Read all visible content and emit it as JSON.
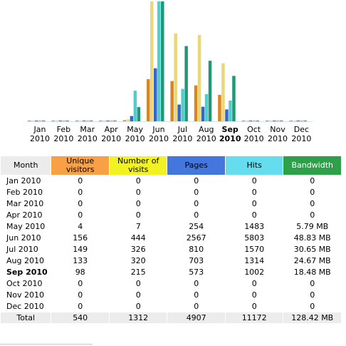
{
  "chart_data": {
    "type": "bar",
    "categories": [
      "Jan 2010",
      "Feb 2010",
      "Mar 2010",
      "Apr 2010",
      "May 2010",
      "Jun 2010",
      "Jul 2010",
      "Aug 2010",
      "Sep 2010",
      "Oct 2010",
      "Nov 2010",
      "Dec 2010"
    ],
    "series": [
      {
        "name": "Unique visitors",
        "values": [
          0,
          0,
          0,
          0,
          4,
          156,
          149,
          133,
          98,
          0,
          0,
          0
        ]
      },
      {
        "name": "Number of visits",
        "values": [
          0,
          0,
          0,
          0,
          7,
          444,
          326,
          320,
          215,
          0,
          0,
          0
        ]
      },
      {
        "name": "Pages",
        "values": [
          0,
          0,
          0,
          0,
          254,
          2567,
          810,
          703,
          573,
          0,
          0,
          0
        ]
      },
      {
        "name": "Hits",
        "values": [
          0,
          0,
          0,
          0,
          1483,
          5803,
          1570,
          1314,
          1002,
          0,
          0,
          0
        ]
      },
      {
        "name": "Bandwidth",
        "values": [
          0,
          0,
          0,
          0,
          5.79,
          48.83,
          30.65,
          24.67,
          18.48,
          0,
          0,
          0
        ]
      }
    ],
    "colors": [
      "#d9861f",
      "#e8d878",
      "#3366cc",
      "#55cccc",
      "#1f9977"
    ],
    "highlight": "Sep 2010"
  },
  "months": [
    {
      "mon": "Jan",
      "year": "2010"
    },
    {
      "mon": "Feb",
      "year": "2010"
    },
    {
      "mon": "Mar",
      "year": "2010"
    },
    {
      "mon": "Apr",
      "year": "2010"
    },
    {
      "mon": "May",
      "year": "2010"
    },
    {
      "mon": "Jun",
      "year": "2010"
    },
    {
      "mon": "Jul",
      "year": "2010"
    },
    {
      "mon": "Aug",
      "year": "2010"
    },
    {
      "mon": "Sep",
      "year": "2010"
    },
    {
      "mon": "Oct",
      "year": "2010"
    },
    {
      "mon": "Nov",
      "year": "2010"
    },
    {
      "mon": "Dec",
      "year": "2010"
    }
  ],
  "table": {
    "headers": {
      "month": "Month",
      "unique": "Unique visitors",
      "visits": "Number of visits",
      "pages": "Pages",
      "hits": "Hits",
      "bandwidth": "Bandwidth"
    },
    "rows": [
      {
        "month": "Jan 2010",
        "unique": "0",
        "visits": "0",
        "pages": "0",
        "hits": "0",
        "bw": "0"
      },
      {
        "month": "Feb 2010",
        "unique": "0",
        "visits": "0",
        "pages": "0",
        "hits": "0",
        "bw": "0"
      },
      {
        "month": "Mar 2010",
        "unique": "0",
        "visits": "0",
        "pages": "0",
        "hits": "0",
        "bw": "0"
      },
      {
        "month": "Apr 2010",
        "unique": "0",
        "visits": "0",
        "pages": "0",
        "hits": "0",
        "bw": "0"
      },
      {
        "month": "May 2010",
        "unique": "4",
        "visits": "7",
        "pages": "254",
        "hits": "1483",
        "bw": "5.79 MB"
      },
      {
        "month": "Jun 2010",
        "unique": "156",
        "visits": "444",
        "pages": "2567",
        "hits": "5803",
        "bw": "48.83 MB"
      },
      {
        "month": "Jul 2010",
        "unique": "149",
        "visits": "326",
        "pages": "810",
        "hits": "1570",
        "bw": "30.65 MB"
      },
      {
        "month": "Aug 2010",
        "unique": "133",
        "visits": "320",
        "pages": "703",
        "hits": "1314",
        "bw": "24.67 MB"
      },
      {
        "month": "Sep 2010",
        "unique": "98",
        "visits": "215",
        "pages": "573",
        "hits": "1002",
        "bw": "18.48 MB"
      },
      {
        "month": "Oct 2010",
        "unique": "0",
        "visits": "0",
        "pages": "0",
        "hits": "0",
        "bw": "0"
      },
      {
        "month": "Nov 2010",
        "unique": "0",
        "visits": "0",
        "pages": "0",
        "hits": "0",
        "bw": "0"
      },
      {
        "month": "Dec 2010",
        "unique": "0",
        "visits": "0",
        "pages": "0",
        "hits": "0",
        "bw": "0"
      }
    ],
    "total": {
      "label": "Total",
      "unique": "540",
      "visits": "1312",
      "pages": "4907",
      "hits": "11172",
      "bw": "128.42 MB"
    }
  }
}
